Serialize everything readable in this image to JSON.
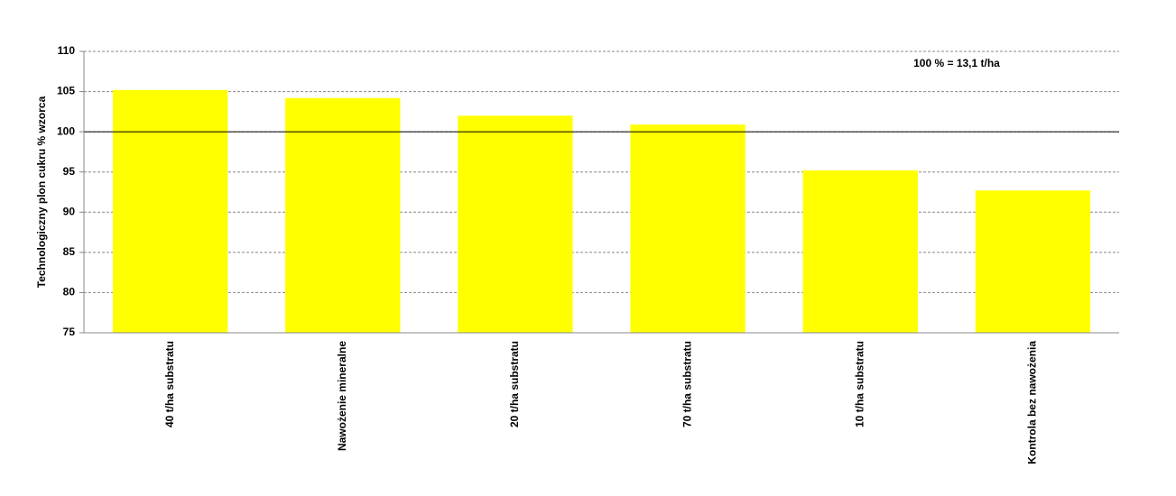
{
  "chart_data": {
    "type": "bar",
    "y_label": "Technologiczny plon cukru % wzorca",
    "annotation": "100 % = 13,1 t/ha",
    "categories": [
      "40 t/ha substratu",
      "Nawożenie mineralne",
      "20 t/ha substratu",
      "70 t/ha substratu",
      "10 t/ha substratu",
      "Kontrola bez nawożenia"
    ],
    "values": [
      105.2,
      104.2,
      102.0,
      100.9,
      95.2,
      92.7
    ],
    "color": "#ffff00",
    "ylim": [
      75,
      110
    ],
    "yticks": [
      75,
      80,
      85,
      90,
      95,
      100,
      105,
      110
    ],
    "grid": true,
    "reference_line": 100
  }
}
